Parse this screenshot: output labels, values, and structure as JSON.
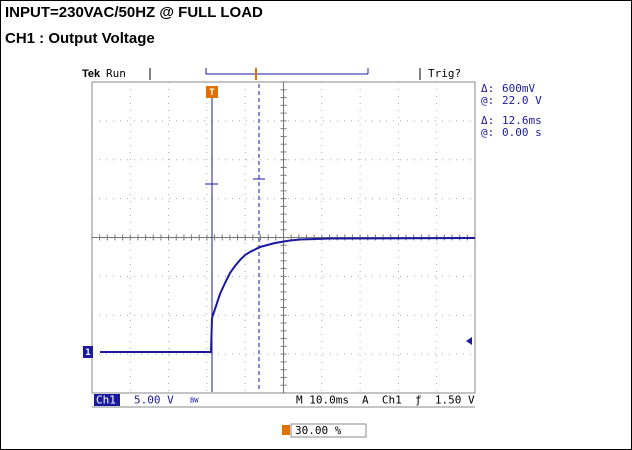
{
  "header": {
    "title": "INPUT=230VAC/50HZ @ FULL LOAD",
    "subtitle": "CH1 : Output Voltage"
  },
  "scope": {
    "brand": "Tek",
    "status": "Run",
    "trigger_state": "Trig?",
    "readouts": [
      {
        "symbol": "Δ:",
        "value": "600mV"
      },
      {
        "symbol": "@:",
        "value": "22.0 V"
      },
      {
        "symbol": "Δ:",
        "value": "12.6ms"
      },
      {
        "symbol": "@:",
        "value": "0.00 s"
      }
    ],
    "channel": "Ch1",
    "volts_per_div": "5.00 V",
    "bandwidth": "BW",
    "timebase": "M 10.0ms",
    "trigger": "A  Ch1  ƒ  1.50 V",
    "trigger_position": "30.00 %",
    "ground_marker": "1",
    "trigger_marker": "T"
  }
}
